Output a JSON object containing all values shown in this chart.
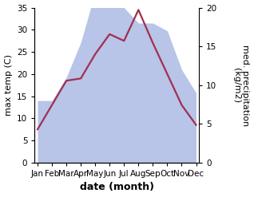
{
  "months": [
    "Jan",
    "Feb",
    "Mar",
    "Apr",
    "May",
    "Jun",
    "Jul",
    "Aug",
    "Sep",
    "Oct",
    "Nov",
    "Dec"
  ],
  "x": [
    0,
    1,
    2,
    3,
    4,
    5,
    6,
    7,
    8,
    9,
    10,
    11
  ],
  "temperature": [
    7.5,
    13.0,
    18.5,
    19.0,
    24.5,
    29.0,
    27.5,
    34.5,
    27.0,
    20.0,
    13.0,
    8.5
  ],
  "precipitation": [
    8.0,
    8.0,
    11.0,
    15.5,
    22.0,
    22.5,
    20.0,
    18.0,
    18.0,
    17.0,
    12.0,
    9.0
  ],
  "temp_color": "#a03050",
  "precip_fill_color": "#b8c4e8",
  "ylim_left": [
    0,
    35
  ],
  "ylim_right": [
    0,
    20
  ],
  "xlabel": "date (month)",
  "ylabel_left": "max temp (C)",
  "ylabel_right": "med. precipitation\n(kg/m2)",
  "bg_color": "#ffffff",
  "label_fontsize": 8,
  "tick_fontsize": 7.5,
  "xlabel_fontsize": 9,
  "line_width": 1.6,
  "left_ticks": [
    0,
    5,
    10,
    15,
    20,
    25,
    30,
    35
  ],
  "right_ticks": [
    0,
    5,
    10,
    15,
    20
  ]
}
